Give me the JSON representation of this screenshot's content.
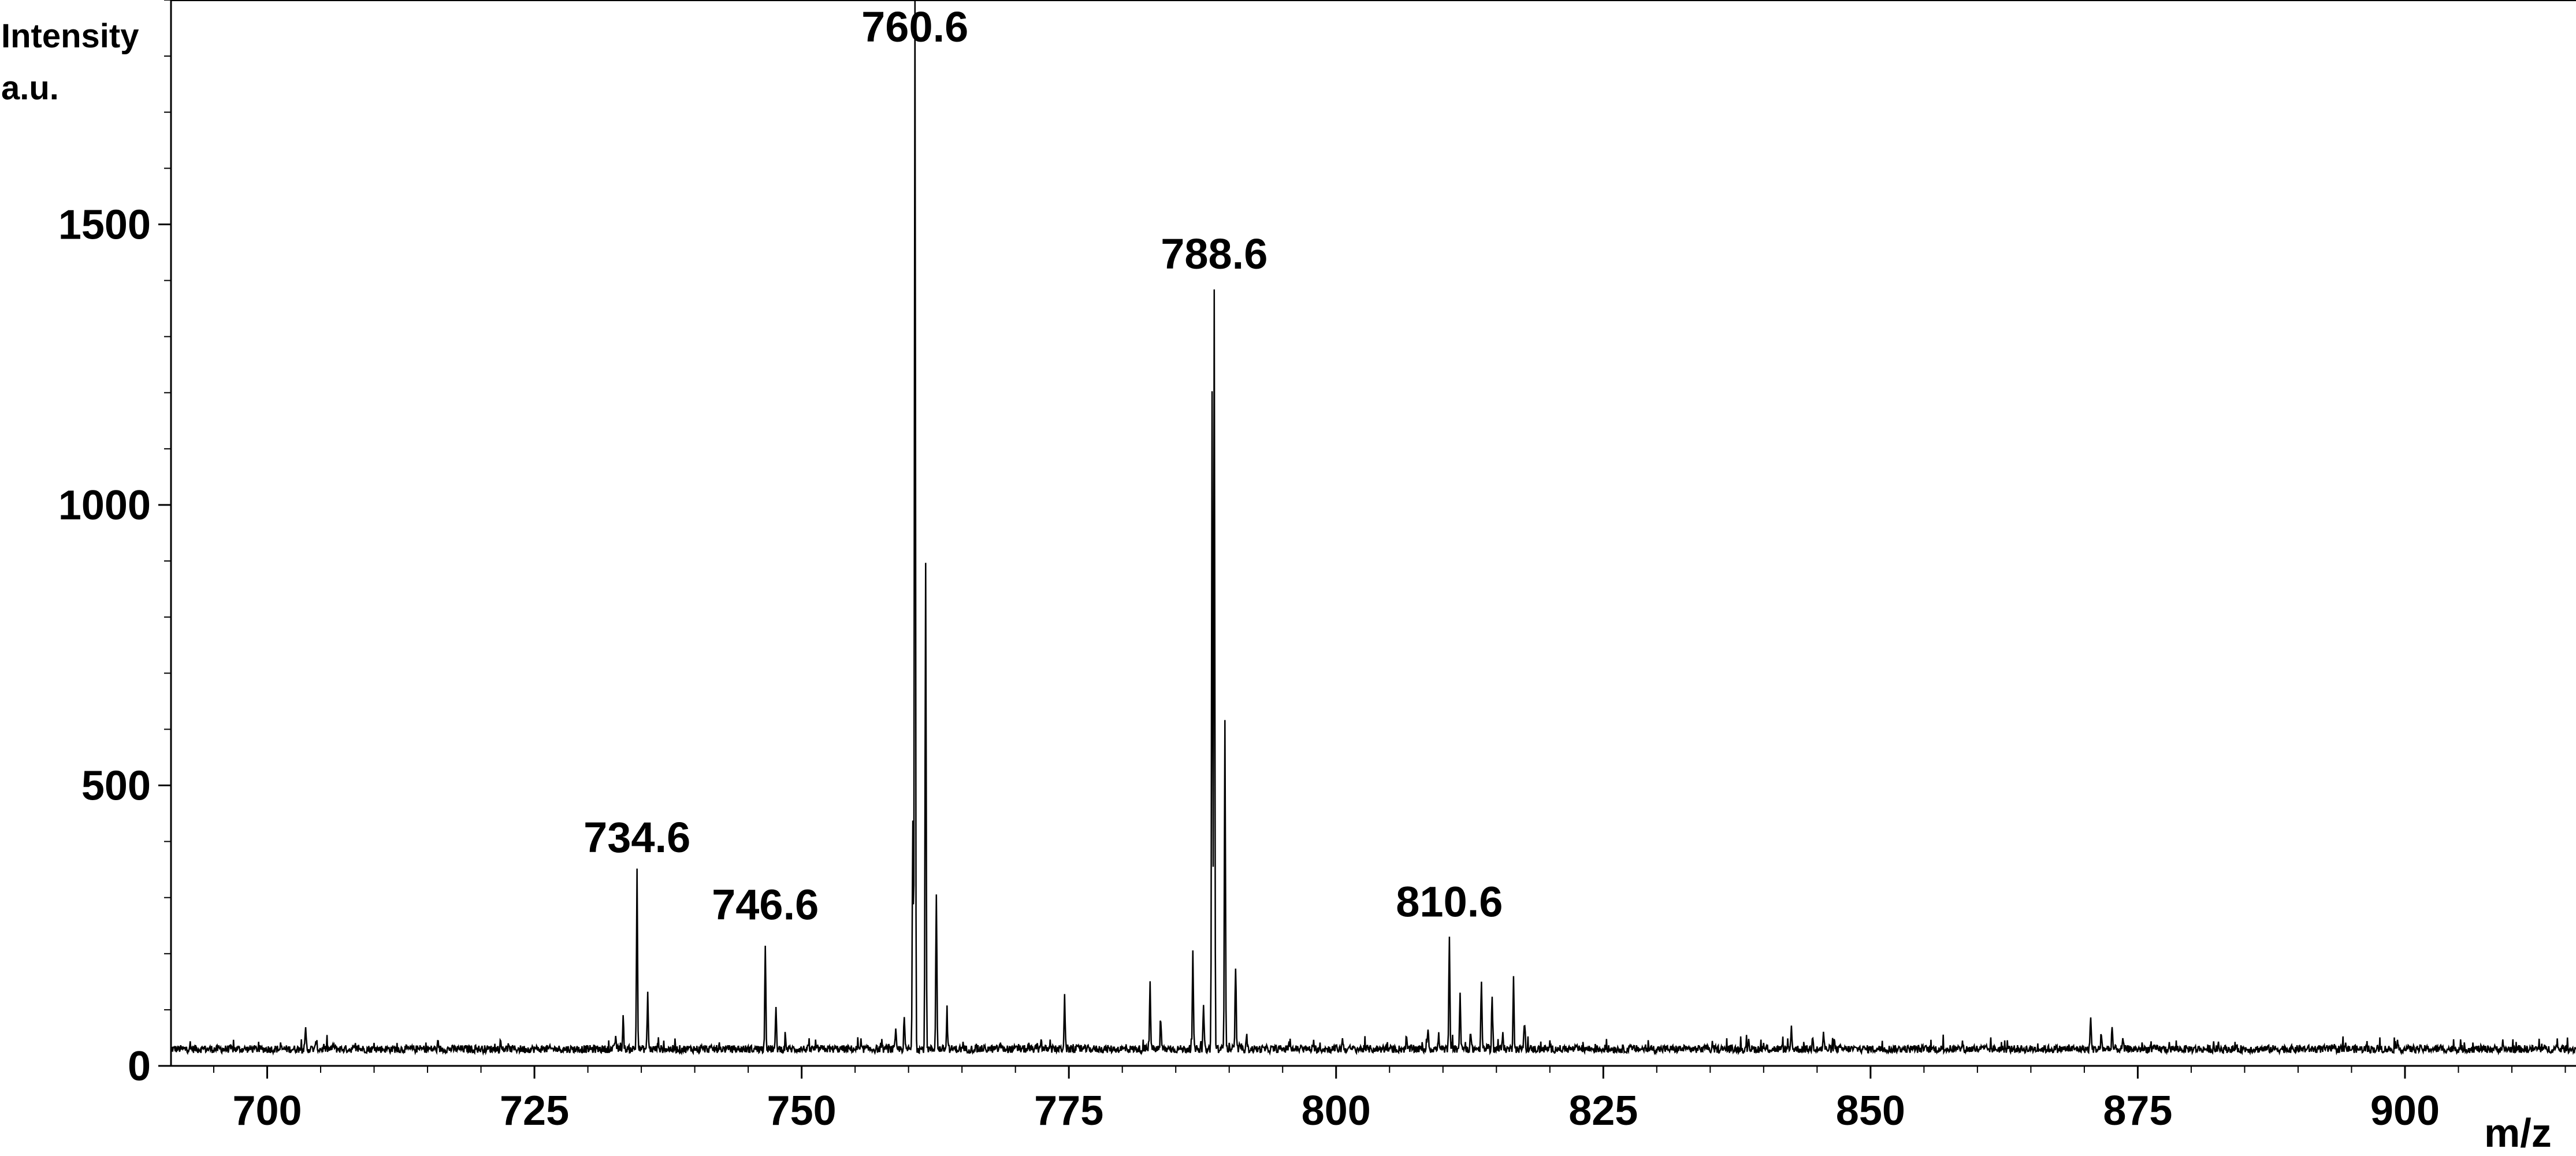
{
  "chart_data": {
    "type": "line",
    "title": "",
    "ylabel_line1": "Intensity",
    "ylabel_line2": "a.u.",
    "xlabel": "m/z",
    "xlim": [
      691,
      916
    ],
    "ylim": [
      0,
      1900
    ],
    "x_ticks": [
      700,
      725,
      750,
      775,
      800,
      825,
      850,
      875,
      900
    ],
    "y_ticks": [
      0,
      500,
      1000,
      1500
    ],
    "baseline": 30,
    "peaks": [
      {
        "x": 703.6,
        "y": 65
      },
      {
        "x": 704.6,
        "y": 45
      },
      {
        "x": 706.2,
        "y": 40
      },
      {
        "x": 732.6,
        "y": 55
      },
      {
        "x": 733.3,
        "y": 85
      },
      {
        "x": 734.6,
        "y": 340
      },
      {
        "x": 735.6,
        "y": 130
      },
      {
        "x": 736.6,
        "y": 45
      },
      {
        "x": 746.6,
        "y": 220
      },
      {
        "x": 747.6,
        "y": 100
      },
      {
        "x": 748.5,
        "y": 45
      },
      {
        "x": 758.8,
        "y": 60
      },
      {
        "x": 759.6,
        "y": 85
      },
      {
        "x": 760.4,
        "y": 430
      },
      {
        "x": 760.6,
        "y": 1905
      },
      {
        "x": 761.6,
        "y": 890
      },
      {
        "x": 762.6,
        "y": 310
      },
      {
        "x": 763.6,
        "y": 90
      },
      {
        "x": 768.6,
        "y": 40
      },
      {
        "x": 772.4,
        "y": 50
      },
      {
        "x": 774.6,
        "y": 125
      },
      {
        "x": 782.6,
        "y": 145
      },
      {
        "x": 783.6,
        "y": 80
      },
      {
        "x": 786.6,
        "y": 200
      },
      {
        "x": 787.6,
        "y": 110
      },
      {
        "x": 788.4,
        "y": 1200
      },
      {
        "x": 788.6,
        "y": 1380
      },
      {
        "x": 789.6,
        "y": 620
      },
      {
        "x": 790.6,
        "y": 175
      },
      {
        "x": 791.6,
        "y": 55
      },
      {
        "x": 795.6,
        "y": 45
      },
      {
        "x": 800.6,
        "y": 50
      },
      {
        "x": 806.6,
        "y": 45
      },
      {
        "x": 808.6,
        "y": 70
      },
      {
        "x": 809.6,
        "y": 55
      },
      {
        "x": 810.6,
        "y": 225
      },
      {
        "x": 811.6,
        "y": 130
      },
      {
        "x": 812.6,
        "y": 55
      },
      {
        "x": 813.6,
        "y": 150
      },
      {
        "x": 814.6,
        "y": 125
      },
      {
        "x": 815.6,
        "y": 60
      },
      {
        "x": 816.6,
        "y": 160
      },
      {
        "x": 817.6,
        "y": 75
      },
      {
        "x": 834.6,
        "y": 40
      },
      {
        "x": 838.6,
        "y": 50
      },
      {
        "x": 842.6,
        "y": 70
      },
      {
        "x": 844.6,
        "y": 55
      },
      {
        "x": 845.6,
        "y": 60
      },
      {
        "x": 846.6,
        "y": 45
      },
      {
        "x": 858.6,
        "y": 40
      },
      {
        "x": 870.6,
        "y": 90
      },
      {
        "x": 871.6,
        "y": 55
      },
      {
        "x": 872.6,
        "y": 70
      },
      {
        "x": 873.6,
        "y": 45
      }
    ],
    "annotations": [
      {
        "text": "734.6",
        "x": 734.6,
        "y": 340
      },
      {
        "text": "746.6",
        "x": 746.6,
        "y": 220
      },
      {
        "text": "760.6",
        "x": 760.6,
        "y": 1905
      },
      {
        "text": "788.6",
        "x": 788.6,
        "y": 1380
      },
      {
        "text": "810.6",
        "x": 810.6,
        "y": 225
      }
    ]
  }
}
